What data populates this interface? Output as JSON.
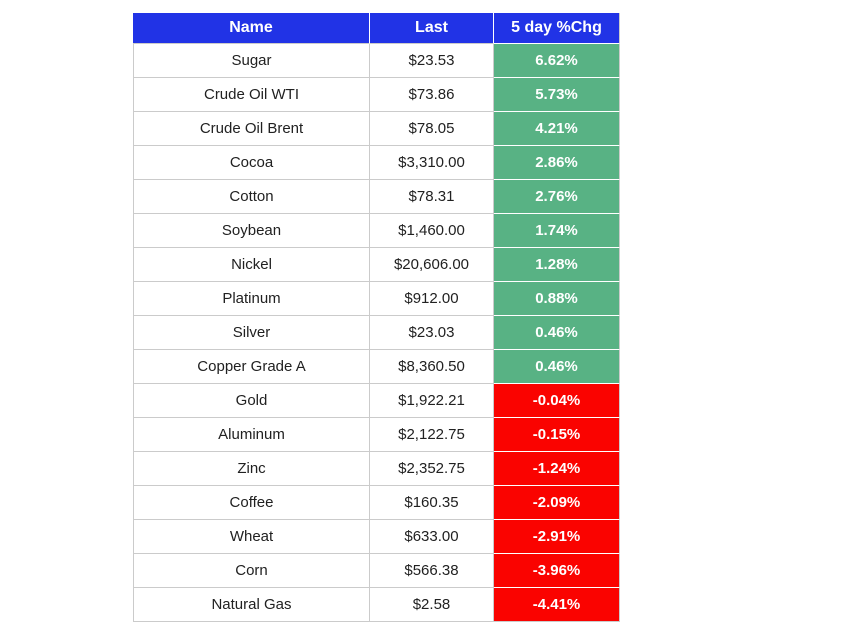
{
  "colors": {
    "header-bg": "#2133e6",
    "header-text": "#ffffff",
    "positive-bg": "#58b284",
    "negative-bg": "#fa0300",
    "chg-text": "#ffffff",
    "body-text": "#212121",
    "border": "#cbcbcb",
    "cell-bg": "#ffffff",
    "page-bg": "#ffffff"
  },
  "chart_data": {
    "type": "table",
    "columns": [
      "Name",
      "Last",
      "5 day %Chg"
    ],
    "rows": [
      {
        "name": "Sugar",
        "last": "$23.53",
        "last_value": 23.53,
        "chg": "6.62%",
        "chg_value": 6.62,
        "direction": "up"
      },
      {
        "name": "Crude Oil WTI",
        "last": "$73.86",
        "last_value": 73.86,
        "chg": "5.73%",
        "chg_value": 5.73,
        "direction": "up"
      },
      {
        "name": "Crude Oil Brent",
        "last": "$78.05",
        "last_value": 78.05,
        "chg": "4.21%",
        "chg_value": 4.21,
        "direction": "up"
      },
      {
        "name": "Cocoa",
        "last": "$3,310.00",
        "last_value": 3310.0,
        "chg": "2.86%",
        "chg_value": 2.86,
        "direction": "up"
      },
      {
        "name": "Cotton",
        "last": "$78.31",
        "last_value": 78.31,
        "chg": "2.76%",
        "chg_value": 2.76,
        "direction": "up"
      },
      {
        "name": "Soybean",
        "last": "$1,460.00",
        "last_value": 1460.0,
        "chg": "1.74%",
        "chg_value": 1.74,
        "direction": "up"
      },
      {
        "name": "Nickel",
        "last": "$20,606.00",
        "last_value": 20606.0,
        "chg": "1.28%",
        "chg_value": 1.28,
        "direction": "up"
      },
      {
        "name": "Platinum",
        "last": "$912.00",
        "last_value": 912.0,
        "chg": "0.88%",
        "chg_value": 0.88,
        "direction": "up"
      },
      {
        "name": "Silver",
        "last": "$23.03",
        "last_value": 23.03,
        "chg": "0.46%",
        "chg_value": 0.46,
        "direction": "up"
      },
      {
        "name": "Copper Grade A",
        "last": "$8,360.50",
        "last_value": 8360.5,
        "chg": "0.46%",
        "chg_value": 0.46,
        "direction": "up"
      },
      {
        "name": "Gold",
        "last": "$1,922.21",
        "last_value": 1922.21,
        "chg": "-0.04%",
        "chg_value": -0.04,
        "direction": "down"
      },
      {
        "name": "Aluminum",
        "last": "$2,122.75",
        "last_value": 2122.75,
        "chg": "-0.15%",
        "chg_value": -0.15,
        "direction": "down"
      },
      {
        "name": "Zinc",
        "last": "$2,352.75",
        "last_value": 2352.75,
        "chg": "-1.24%",
        "chg_value": -1.24,
        "direction": "down"
      },
      {
        "name": "Coffee",
        "last": "$160.35",
        "last_value": 160.35,
        "chg": "-2.09%",
        "chg_value": -2.09,
        "direction": "down"
      },
      {
        "name": "Wheat",
        "last": "$633.00",
        "last_value": 633.0,
        "chg": "-2.91%",
        "chg_value": -2.91,
        "direction": "down"
      },
      {
        "name": "Corn",
        "last": "$566.38",
        "last_value": 566.38,
        "chg": "-3.96%",
        "chg_value": -3.96,
        "direction": "down"
      },
      {
        "name": "Natural Gas",
        "last": "$2.58",
        "last_value": 2.58,
        "chg": "-4.41%",
        "chg_value": -4.41,
        "direction": "down"
      }
    ]
  }
}
